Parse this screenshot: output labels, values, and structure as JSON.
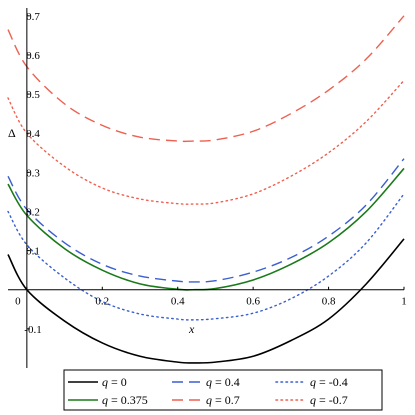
{
  "chart_data": {
    "type": "line",
    "xlabel": "x",
    "ylabel": "Δ",
    "xlim": [
      -0.05,
      1.0
    ],
    "ylim": [
      -0.2,
      0.72
    ],
    "x_ticks": [
      {
        "value": 0,
        "label": "0"
      },
      {
        "value": 0.2,
        "label": "0.2"
      },
      {
        "value": 0.4,
        "label": "0.4"
      },
      {
        "value": 0.6,
        "label": "0.6"
      },
      {
        "value": 0.8,
        "label": "0.8"
      },
      {
        "value": 1.0,
        "label": "1"
      }
    ],
    "y_ticks": [
      {
        "value": -0.1,
        "label": "-0.1"
      },
      {
        "value": 0.1,
        "label": "0.1"
      },
      {
        "value": 0.2,
        "label": "0.2"
      },
      {
        "value": 0.3,
        "label": "0.3"
      },
      {
        "value": 0.4,
        "label": "0.4"
      },
      {
        "value": 0.5,
        "label": "0.5"
      },
      {
        "value": 0.6,
        "label": "0.6"
      },
      {
        "value": 0.7,
        "label": "0.7"
      }
    ],
    "legend_position": "bottom",
    "series": [
      {
        "name": "q = 0",
        "q_label": "0",
        "color": "#000000",
        "dash": "solid",
        "x": [
          -0.05,
          0.0,
          0.1,
          0.2,
          0.3,
          0.4,
          0.44,
          0.5,
          0.6,
          0.7,
          0.8,
          0.9,
          1.0
        ],
        "y": [
          0.09,
          0.0,
          -0.08,
          -0.136,
          -0.17,
          -0.185,
          -0.187,
          -0.185,
          -0.17,
          -0.13,
          -0.075,
          0.015,
          0.13
        ]
      },
      {
        "name": "q = 0.375",
        "q_label": "0.375",
        "color": "#1a7a1a",
        "dash": "solid",
        "x": [
          -0.05,
          0.0,
          0.1,
          0.2,
          0.3,
          0.4,
          0.44,
          0.5,
          0.6,
          0.7,
          0.8,
          0.9,
          1.0
        ],
        "y": [
          0.27,
          0.19,
          0.105,
          0.05,
          0.015,
          0.001,
          0.0,
          0.003,
          0.025,
          0.065,
          0.12,
          0.2,
          0.31
        ]
      },
      {
        "name": "q = 0.4",
        "q_label": "0.4",
        "color": "#3a5fd0",
        "dash": "long",
        "x": [
          -0.05,
          0.0,
          0.1,
          0.2,
          0.3,
          0.4,
          0.44,
          0.5,
          0.6,
          0.7,
          0.8,
          0.9,
          1.0
        ],
        "y": [
          0.29,
          0.205,
          0.12,
          0.065,
          0.035,
          0.022,
          0.02,
          0.023,
          0.045,
          0.082,
          0.137,
          0.217,
          0.335
        ]
      },
      {
        "name": "q = -0.4",
        "q_label": "-0.4",
        "color": "#3a5fd0",
        "dash": "dot",
        "x": [
          -0.05,
          0.0,
          0.1,
          0.2,
          0.3,
          0.4,
          0.44,
          0.5,
          0.6,
          0.7,
          0.8,
          0.9,
          1.0
        ],
        "y": [
          0.2,
          0.115,
          0.03,
          -0.03,
          -0.062,
          -0.075,
          -0.077,
          -0.074,
          -0.06,
          -0.023,
          0.035,
          0.12,
          0.245
        ]
      },
      {
        "name": "q = 0.7",
        "q_label": "0.7",
        "color": "#ee6050",
        "dash": "long",
        "x": [
          -0.05,
          0.0,
          0.1,
          0.2,
          0.3,
          0.4,
          0.44,
          0.5,
          0.6,
          0.7,
          0.8,
          0.9,
          1.0
        ],
        "y": [
          0.665,
          0.57,
          0.475,
          0.42,
          0.39,
          0.38,
          0.38,
          0.383,
          0.405,
          0.45,
          0.51,
          0.59,
          0.7
        ]
      },
      {
        "name": "q = -0.7",
        "q_label": "-0.7",
        "color": "#ee6050",
        "dash": "dot",
        "x": [
          -0.05,
          0.0,
          0.1,
          0.2,
          0.3,
          0.4,
          0.44,
          0.5,
          0.6,
          0.7,
          0.8,
          0.9,
          1.0
        ],
        "y": [
          0.49,
          0.4,
          0.315,
          0.26,
          0.232,
          0.22,
          0.219,
          0.222,
          0.245,
          0.29,
          0.35,
          0.43,
          0.535
        ]
      }
    ],
    "legend_order": [
      0,
      2,
      3,
      1,
      4,
      5
    ]
  }
}
